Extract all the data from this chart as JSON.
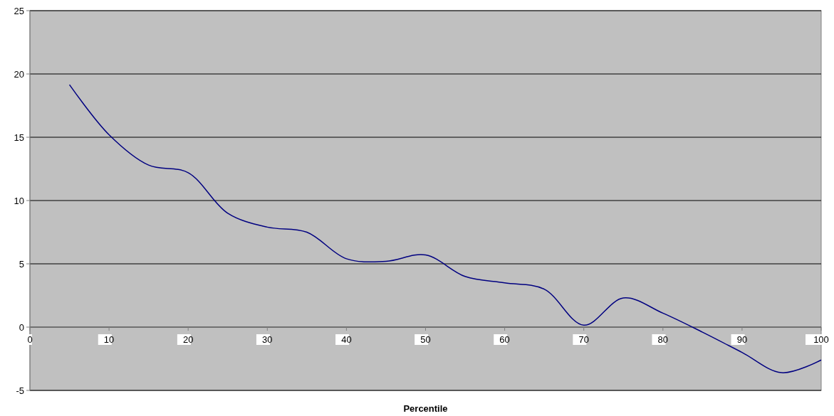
{
  "chart_data": {
    "type": "line",
    "xlabel": "Percentile",
    "x": [
      5,
      10,
      15,
      20,
      25,
      30,
      35,
      40,
      45,
      50,
      55,
      60,
      65,
      70,
      75,
      80,
      85,
      90,
      95,
      100
    ],
    "series": [
      {
        "color": "#000080",
        "values": [
          19.15,
          15.2,
          12.8,
          12.2,
          9.0,
          7.9,
          7.5,
          5.4,
          5.2,
          5.7,
          4.0,
          3.5,
          3.0,
          0.15,
          2.3,
          1.1,
          -0.4,
          -2.0,
          -3.6,
          -2.6
        ]
      }
    ],
    "xlim": [
      0,
      100
    ],
    "xticks": [
      0,
      10,
      20,
      30,
      40,
      50,
      60,
      70,
      80,
      90,
      100
    ],
    "ylim": [
      -5,
      25
    ],
    "yticks": [
      -5,
      0,
      5,
      10,
      15,
      20,
      25
    ],
    "grid": "y",
    "marker": "none",
    "line_style": "solid"
  }
}
